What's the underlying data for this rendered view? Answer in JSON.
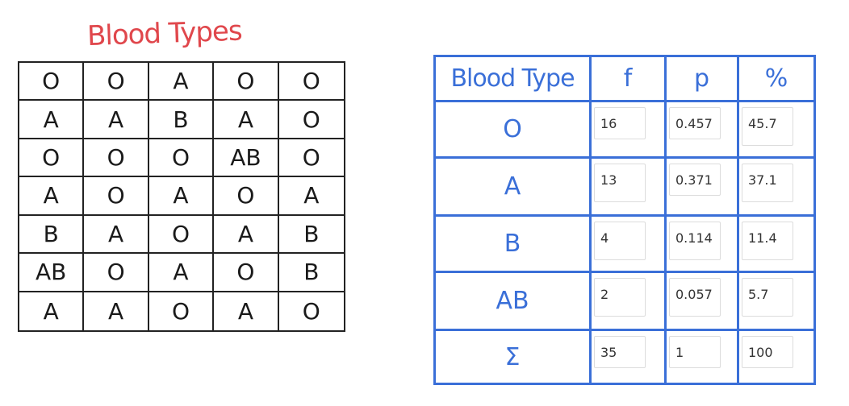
{
  "left_title": "Blood Types",
  "raw_data": [
    [
      "O",
      "O",
      "A",
      "O",
      "O"
    ],
    [
      "A",
      "A",
      "B",
      "A",
      "O"
    ],
    [
      "O",
      "O",
      "O",
      "AB",
      "O"
    ],
    [
      "A",
      "O",
      "A",
      "O",
      "A"
    ],
    [
      "B",
      "A",
      "O",
      "A",
      "B"
    ],
    [
      "AB",
      "O",
      "A",
      "O",
      "B"
    ],
    [
      "A",
      "A",
      "O",
      "A",
      "O"
    ]
  ],
  "freq_table": {
    "headers": [
      "Blood Type",
      "f",
      "p",
      "%"
    ],
    "rows": [
      {
        "label": "O",
        "f": "16",
        "p": "0.457",
        "pct": "45.7"
      },
      {
        "label": "A",
        "f": "13",
        "p": "0.371",
        "pct": "37.1"
      },
      {
        "label": "B",
        "f": "4",
        "p": "0.114",
        "pct": "11.4"
      },
      {
        "label": "AB",
        "f": "2",
        "p": "0.057",
        "pct": "5.7"
      },
      {
        "label": "Σ",
        "f": "35",
        "p": "1",
        "pct": "100"
      }
    ]
  },
  "colors": {
    "title_red": "#e0474c",
    "table_blue": "#3a6fd8",
    "ink": "#1a1a1a"
  }
}
